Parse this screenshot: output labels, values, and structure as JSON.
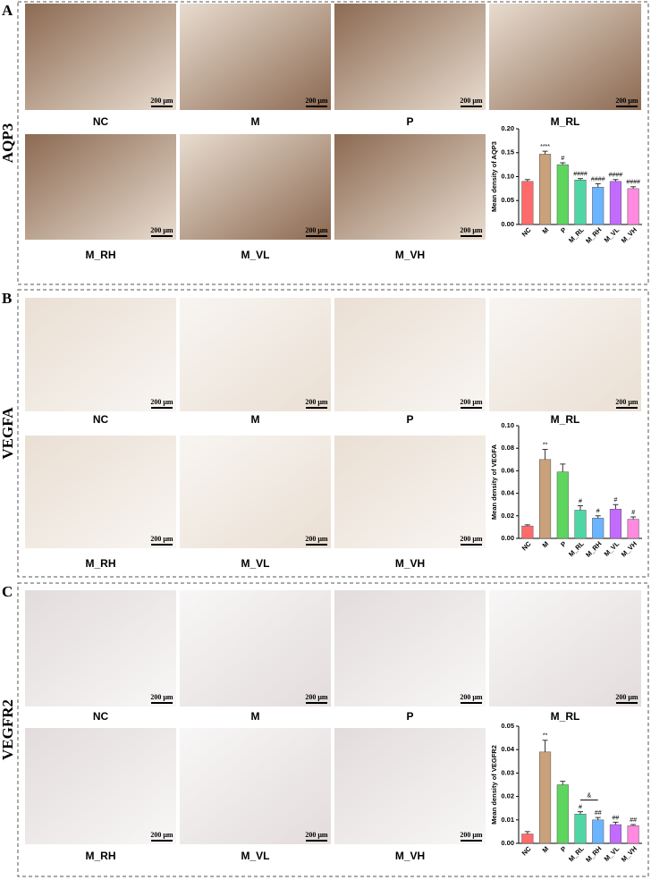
{
  "panels": [
    {
      "label": "A",
      "marker": "AQP3",
      "images": [
        "NC",
        "M",
        "P",
        "M_RL",
        "M_RH",
        "M_VL",
        "M_VH"
      ],
      "scale_bar": "200 μm"
    },
    {
      "label": "B",
      "marker": "VEGFA",
      "images": [
        "NC",
        "M",
        "P",
        "M_RL",
        "M_RH",
        "M_VL",
        "M_VH"
      ],
      "scale_bar": "200 μm"
    },
    {
      "label": "C",
      "marker": "VEGFR2",
      "images": [
        "NC",
        "M",
        "P",
        "M_RL",
        "M_RH",
        "M_VL",
        "M_VH"
      ],
      "scale_bar": "200 μm"
    }
  ],
  "chart_data": [
    {
      "type": "bar",
      "y_label": "Mean density of AQP3",
      "categories": [
        "NC",
        "M",
        "P",
        "M_RL",
        "M_RH",
        "M_VL",
        "M_VH"
      ],
      "values": [
        0.09,
        0.147,
        0.125,
        0.093,
        0.078,
        0.09,
        0.075
      ],
      "errors": [
        0.004,
        0.006,
        0.004,
        0.003,
        0.007,
        0.004,
        0.004
      ],
      "annotations": [
        null,
        "****",
        "#",
        "####",
        "####",
        "####",
        "####"
      ],
      "colors": [
        "#ff6b6b",
        "#c9a27c",
        "#5ed65e",
        "#4fd6a4",
        "#6cb4ff",
        "#c46bff",
        "#ff8ae0"
      ],
      "ylim": [
        0,
        0.2
      ],
      "yticks": [
        {
          "value": 0,
          "label": "0.00"
        },
        {
          "value": 0.05,
          "label": "0.05"
        },
        {
          "value": 0.1,
          "label": "0.10"
        },
        {
          "value": 0.15,
          "label": "0.15"
        },
        {
          "value": 0.2,
          "label": "0.20"
        }
      ]
    },
    {
      "type": "bar",
      "y_label": "Mean density of VEGFA",
      "categories": [
        "NC",
        "M",
        "P",
        "M_RL",
        "M_RH",
        "M_VL",
        "M_VH"
      ],
      "values": [
        0.011,
        0.07,
        0.059,
        0.025,
        0.018,
        0.026,
        0.017
      ],
      "errors": [
        0.001,
        0.009,
        0.007,
        0.004,
        0.002,
        0.004,
        0.002
      ],
      "annotations": [
        null,
        "**",
        null,
        "#",
        "#",
        "#",
        "#"
      ],
      "colors": [
        "#ff6b6b",
        "#c9a27c",
        "#5ed65e",
        "#4fd6a4",
        "#6cb4ff",
        "#c46bff",
        "#ff8ae0"
      ],
      "ylim": [
        0,
        0.1
      ],
      "yticks": [
        {
          "value": 0,
          "label": "0.00"
        },
        {
          "value": 0.02,
          "label": "0.02"
        },
        {
          "value": 0.04,
          "label": "0.04"
        },
        {
          "value": 0.06,
          "label": "0.06"
        },
        {
          "value": 0.08,
          "label": "0.08"
        },
        {
          "value": 0.1,
          "label": "0.10"
        }
      ]
    },
    {
      "type": "bar",
      "y_label": "Mean density of VEGFR2",
      "categories": [
        "NC",
        "M",
        "P",
        "M_RL",
        "M_RH",
        "M_VL",
        "M_VH"
      ],
      "values": [
        0.004,
        0.039,
        0.025,
        0.0125,
        0.01,
        0.008,
        0.0075
      ],
      "errors": [
        0.001,
        0.005,
        0.0015,
        0.001,
        0.001,
        0.001,
        0.0005
      ],
      "annotations": [
        null,
        "**",
        null,
        "#",
        "##",
        "##",
        "##"
      ],
      "bracket_label": "&",
      "colors": [
        "#ff6b6b",
        "#c9a27c",
        "#5ed65e",
        "#4fd6a4",
        "#6cb4ff",
        "#c46bff",
        "#ff8ae0"
      ],
      "ylim": [
        0,
        0.05
      ],
      "yticks": [
        {
          "value": 0,
          "label": "0.00"
        },
        {
          "value": 0.01,
          "label": "0.01"
        },
        {
          "value": 0.02,
          "label": "0.02"
        },
        {
          "value": 0.03,
          "label": "0.03"
        },
        {
          "value": 0.04,
          "label": "0.04"
        },
        {
          "value": 0.05,
          "label": "0.05"
        }
      ]
    }
  ]
}
